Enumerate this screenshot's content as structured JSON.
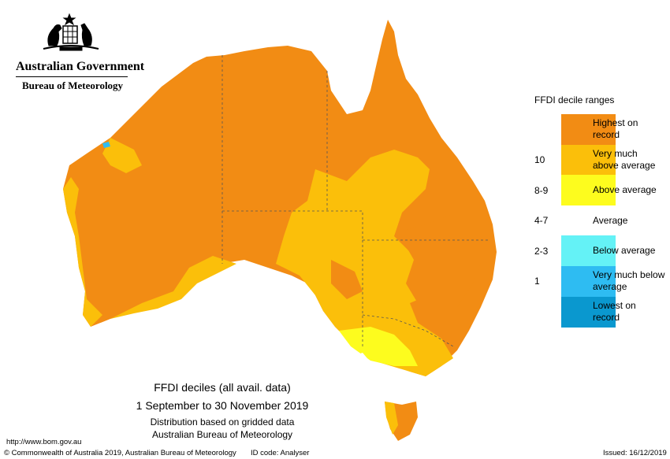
{
  "header": {
    "government": "Australian Government",
    "bureau": "Bureau of Meteorology"
  },
  "legend": {
    "title": "FFDI decile ranges",
    "items": [
      {
        "label": "Highest on record",
        "color": "#f28c14"
      },
      {
        "label": "Very much above average",
        "color": "#fbbf0a",
        "range": "10"
      },
      {
        "label": "Above average",
        "color": "#fdfc1e",
        "range": "8-9"
      },
      {
        "label": "Average",
        "color": "#ffffff",
        "range": "4-7"
      },
      {
        "label": "Below average",
        "color": "#64f2f6",
        "range": "2-3"
      },
      {
        "label": "Very much below average",
        "color": "#2ebcf2",
        "range": "1"
      },
      {
        "label": "Lowest on record",
        "color": "#0a98cf"
      }
    ]
  },
  "caption": {
    "title": "FFDI deciles (all avail. data)",
    "period": "1 September to 30 November 2019",
    "lines": [
      "Distribution based on gridded data",
      "Australian Bureau of Meteorology"
    ]
  },
  "footer": {
    "url": "http://www.bom.gov.au",
    "copyright": "© Commonwealth of Australia 2019, Australian Bureau of Meteorology",
    "id": "ID code: Analyser",
    "issued": "Issued: 16/12/2019"
  }
}
